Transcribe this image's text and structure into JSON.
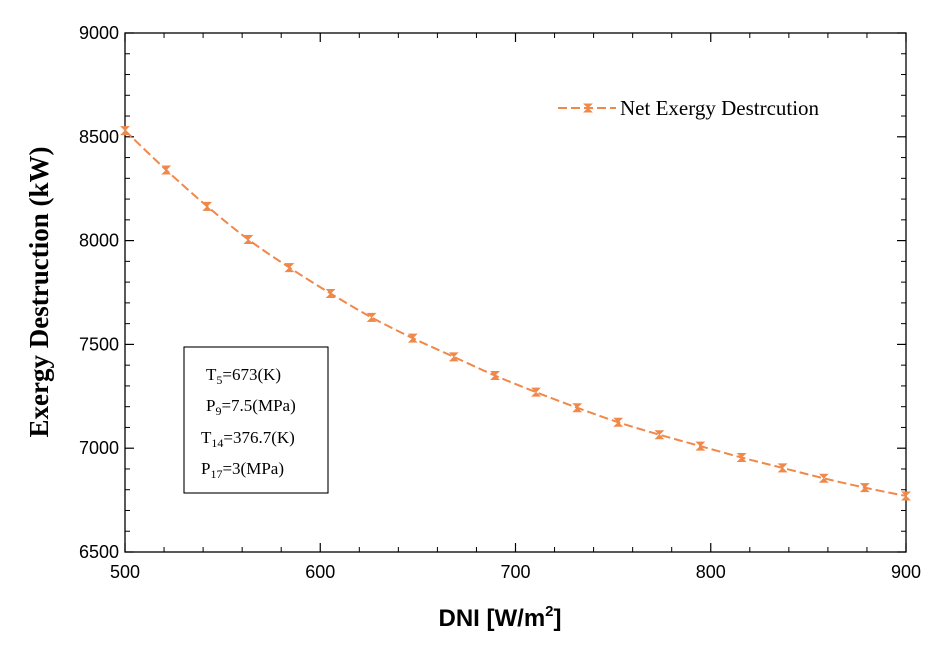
{
  "chart_data": {
    "type": "line",
    "title": "",
    "xlabel": "DNI  [W/m",
    "xlabel_sup": "2",
    "xlabel_end": "]",
    "ylabel": "Exergy Destruction (kW)",
    "xlim": [
      500,
      900
    ],
    "ylim": [
      6500,
      9000
    ],
    "xticks": [
      500,
      600,
      700,
      800,
      900
    ],
    "yticks": [
      6500,
      7000,
      7500,
      8000,
      8500,
      9000
    ],
    "legend_position": "top-right",
    "series": [
      {
        "name": "Net Exergy Destrcution",
        "color": "#f0884a",
        "x": [
          500,
          521.1,
          542.1,
          563.2,
          584.2,
          605.3,
          626.3,
          647.4,
          668.4,
          689.5,
          710.5,
          731.6,
          752.6,
          773.7,
          794.7,
          815.8,
          836.8,
          857.9,
          878.9,
          900
        ],
        "y": [
          8530,
          8340,
          8165,
          8005,
          7870,
          7745,
          7630,
          7530,
          7440,
          7350,
          7270,
          7195,
          7125,
          7065,
          7010,
          6955,
          6905,
          6855,
          6810,
          6770
        ]
      }
    ],
    "annotations": [
      {
        "base": "T",
        "sub": "5",
        "rest": "=673(K)"
      },
      {
        "base": "P",
        "sub": "9",
        "rest": "=7.5(MPa)"
      },
      {
        "base": "T",
        "sub": "14",
        "rest": "=376.7(K)"
      },
      {
        "base": "P",
        "sub": "17",
        "rest": "=3(MPa)"
      }
    ]
  }
}
